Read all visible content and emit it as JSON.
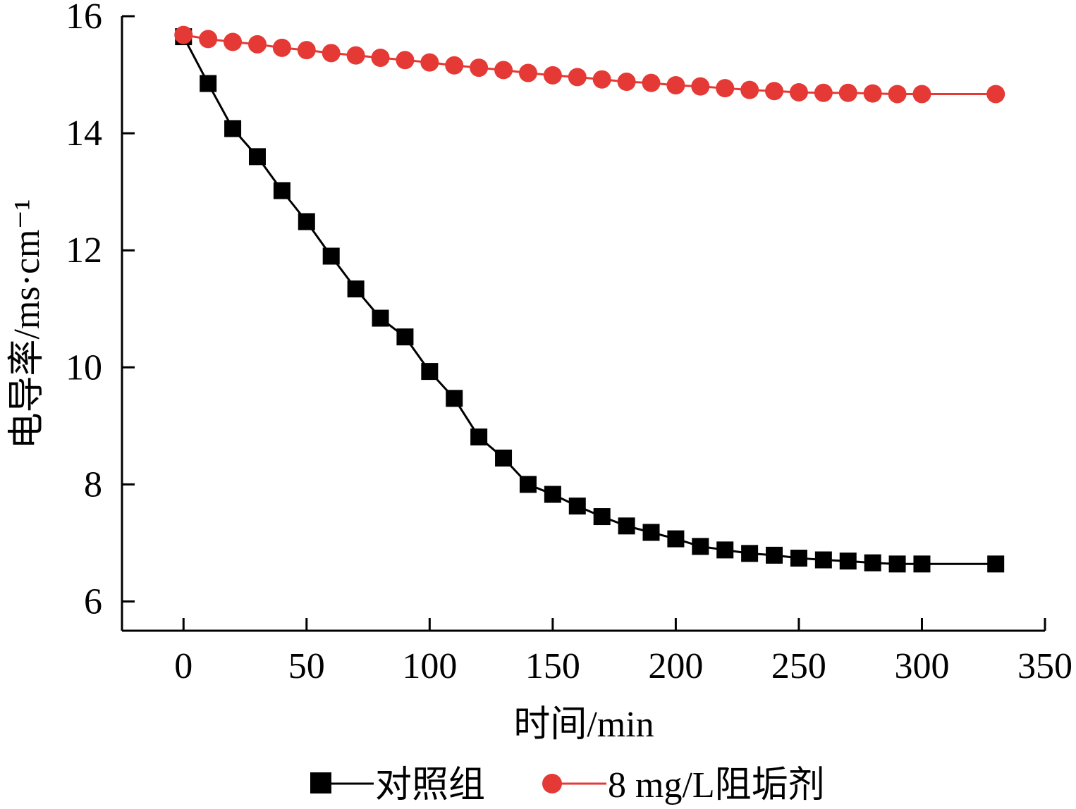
{
  "chart_data": {
    "type": "line",
    "title": "",
    "xlabel": "时间/min",
    "ylabel": "电导率/ms·cm⁻¹",
    "xlim": [
      -25,
      350
    ],
    "ylim": [
      5.5,
      16
    ],
    "xticks": [
      0,
      50,
      100,
      150,
      200,
      250,
      300,
      350
    ],
    "yticks": [
      6,
      8,
      10,
      12,
      14,
      16
    ],
    "grid": false,
    "legend_position": "bottom",
    "series": [
      {
        "name": "对照组",
        "color": "#000000",
        "marker": "square",
        "x": [
          0,
          10,
          20,
          30,
          40,
          50,
          60,
          70,
          80,
          90,
          100,
          110,
          120,
          130,
          140,
          150,
          160,
          170,
          180,
          190,
          200,
          210,
          220,
          230,
          240,
          250,
          260,
          270,
          280,
          290,
          300,
          330
        ],
        "values": [
          15.65,
          14.85,
          14.08,
          13.6,
          13.02,
          12.49,
          11.9,
          11.34,
          10.84,
          10.52,
          9.93,
          9.47,
          8.81,
          8.45,
          8.0,
          7.83,
          7.63,
          7.45,
          7.29,
          7.18,
          7.07,
          6.94,
          6.88,
          6.82,
          6.79,
          6.74,
          6.71,
          6.69,
          6.66,
          6.64,
          6.64,
          6.64
        ]
      },
      {
        "name": "8 mg/L阻垢剂",
        "color": "#e53935",
        "marker": "circle",
        "x": [
          0,
          10,
          20,
          30,
          40,
          50,
          60,
          70,
          80,
          90,
          100,
          110,
          120,
          130,
          140,
          150,
          160,
          170,
          180,
          190,
          200,
          210,
          220,
          230,
          240,
          250,
          260,
          270,
          280,
          290,
          300,
          330
        ],
        "values": [
          15.68,
          15.61,
          15.56,
          15.52,
          15.46,
          15.42,
          15.37,
          15.33,
          15.29,
          15.25,
          15.21,
          15.16,
          15.12,
          15.08,
          15.03,
          14.99,
          14.96,
          14.92,
          14.88,
          14.86,
          14.82,
          14.8,
          14.77,
          14.74,
          14.72,
          14.7,
          14.69,
          14.69,
          14.68,
          14.67,
          14.67,
          14.67
        ]
      }
    ]
  }
}
